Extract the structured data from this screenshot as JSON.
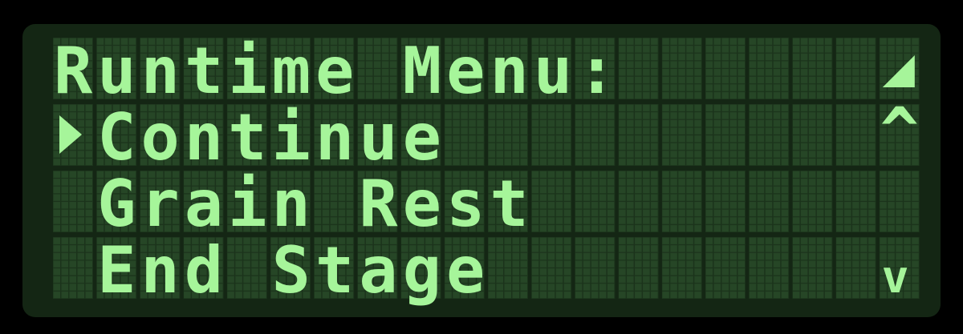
{
  "menu": {
    "title": "Runtime Menu:",
    "items": [
      "Continue",
      "Grain Rest",
      "End Stage"
    ],
    "scroll_up": "^",
    "scroll_down": "v"
  }
}
